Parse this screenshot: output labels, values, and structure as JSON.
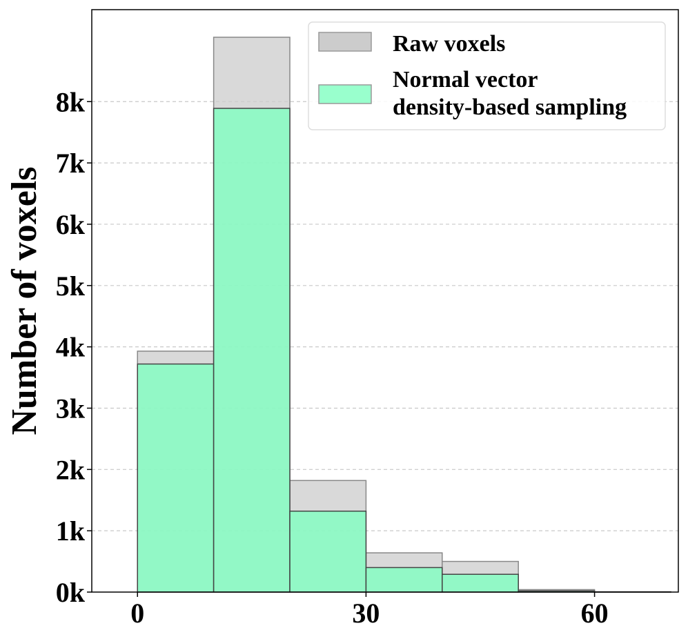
{
  "chart_data": {
    "type": "bar",
    "subtype": "overlapping-histogram",
    "title": "",
    "xlabel": "",
    "ylabel": "Number of voxels",
    "xlim": [
      -6,
      71
    ],
    "ylim": [
      0,
      9500
    ],
    "x_ticks": [
      0,
      30,
      60
    ],
    "x_tick_labels": [
      "0",
      "30",
      "60"
    ],
    "y_ticks": [
      0,
      1000,
      2000,
      3000,
      4000,
      5000,
      6000,
      7000,
      8000
    ],
    "y_tick_labels": [
      "0k",
      "1k",
      "2k",
      "3k",
      "4k",
      "5k",
      "6k",
      "7k",
      "8k"
    ],
    "grid": "y-dashed",
    "bin_edges": [
      0,
      10,
      20,
      30,
      40,
      50,
      60,
      70
    ],
    "series": [
      {
        "name": "Raw voxels",
        "color": "#cccccc",
        "values": [
          3930,
          9050,
          1820,
          640,
          500,
          40,
          5
        ]
      },
      {
        "name": "Normal vector density-based sampling",
        "legend_lines": [
          "Normal vector",
          "density-based sampling"
        ],
        "color": "#7fffc0",
        "values": [
          3720,
          7890,
          1320,
          400,
          290,
          20,
          3
        ]
      }
    ],
    "legend_position": "top-right"
  }
}
